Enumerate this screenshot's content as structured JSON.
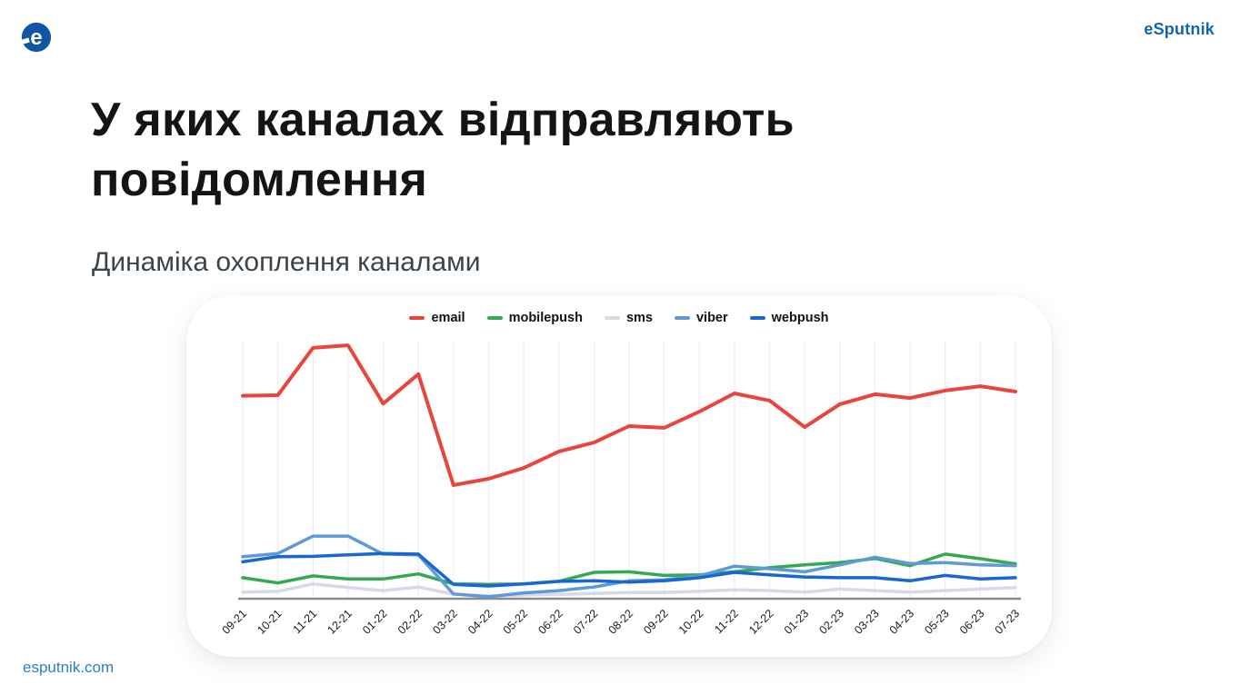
{
  "header": {
    "brand": "eSputnik"
  },
  "title": "У яких каналах відправляють повідомлення",
  "subtitle": "Динаміка охоплення каналами",
  "footer": {
    "link": "esputnik.com"
  },
  "icons": {
    "logo": "esputnik-logo"
  },
  "colors": {
    "brand_blue": "#1365ab",
    "logo_blue": "#1156a6",
    "link_blue": "#2c7fc4",
    "title_black": "#141414",
    "subtitle_gray": "#39444c",
    "gridline": "#ededed",
    "axis_line": "#8b8b8b",
    "axis_label": "#1a1a1a"
  },
  "chart_data": {
    "type": "line",
    "title": "",
    "xlabel": "",
    "ylabel": "",
    "legend_position": "top",
    "grid": "vertical-only",
    "y_axis_visible": false,
    "ylim": [
      0,
      100
    ],
    "x": [
      "09-21",
      "10-21",
      "11-21",
      "12-21",
      "01-22",
      "02-22",
      "03-22",
      "04-22",
      "05-22",
      "06-22",
      "07-22",
      "08-22",
      "09-22",
      "10-22",
      "11-22",
      "12-22",
      "01-23",
      "02-23",
      "03-23",
      "04-23",
      "05-23",
      "06-23",
      "07-23"
    ],
    "series": [
      {
        "name": "email",
        "color": "#e8453c",
        "values": [
          78.6,
          78.8,
          97.2,
          98.2,
          75.5,
          87.0,
          43.8,
          46.3,
          50.5,
          56.9,
          60.4,
          66.8,
          66.1,
          72.4,
          79.5,
          76.7,
          66.4,
          75.3,
          79.2,
          77.7,
          80.6,
          82.3,
          80.2
        ]
      },
      {
        "name": "mobilepush",
        "color": "#34a853",
        "values": [
          7.8,
          5.8,
          8.5,
          7.3,
          7.3,
          9.3,
          5.4,
          5.2,
          5.4,
          6.4,
          9.9,
          10.1,
          8.7,
          8.9,
          10.1,
          11.7,
          12.8,
          13.7,
          15.3,
          12.5,
          17.0,
          15.2,
          13.2
        ]
      },
      {
        "name": "sms",
        "color": "#d6dae6",
        "values": [
          2.2,
          2.5,
          5.4,
          4.0,
          2.8,
          4.2,
          1.4,
          0.7,
          1.1,
          1.3,
          1.7,
          2.1,
          2.1,
          2.5,
          3.1,
          2.8,
          2.2,
          3.4,
          2.8,
          2.2,
          2.8,
          3.4,
          4.0
        ]
      },
      {
        "name": "viber",
        "color": "#5e9bd6",
        "values": [
          16.0,
          17.2,
          24.0,
          24.0,
          17.0,
          16.7,
          1.5,
          0.4,
          1.9,
          2.8,
          4.2,
          6.6,
          7.0,
          8.5,
          12.3,
          11.3,
          10.1,
          12.8,
          15.8,
          13.3,
          13.7,
          12.8,
          12.5
        ]
      },
      {
        "name": "webpush",
        "color": "#1967d2",
        "values": [
          14.0,
          16.0,
          16.1,
          16.7,
          17.2,
          17.0,
          5.2,
          4.6,
          5.4,
          6.4,
          6.6,
          6.1,
          6.6,
          7.8,
          9.9,
          8.9,
          8.1,
          7.8,
          7.8,
          6.6,
          8.7,
          7.3,
          7.8
        ]
      }
    ]
  }
}
